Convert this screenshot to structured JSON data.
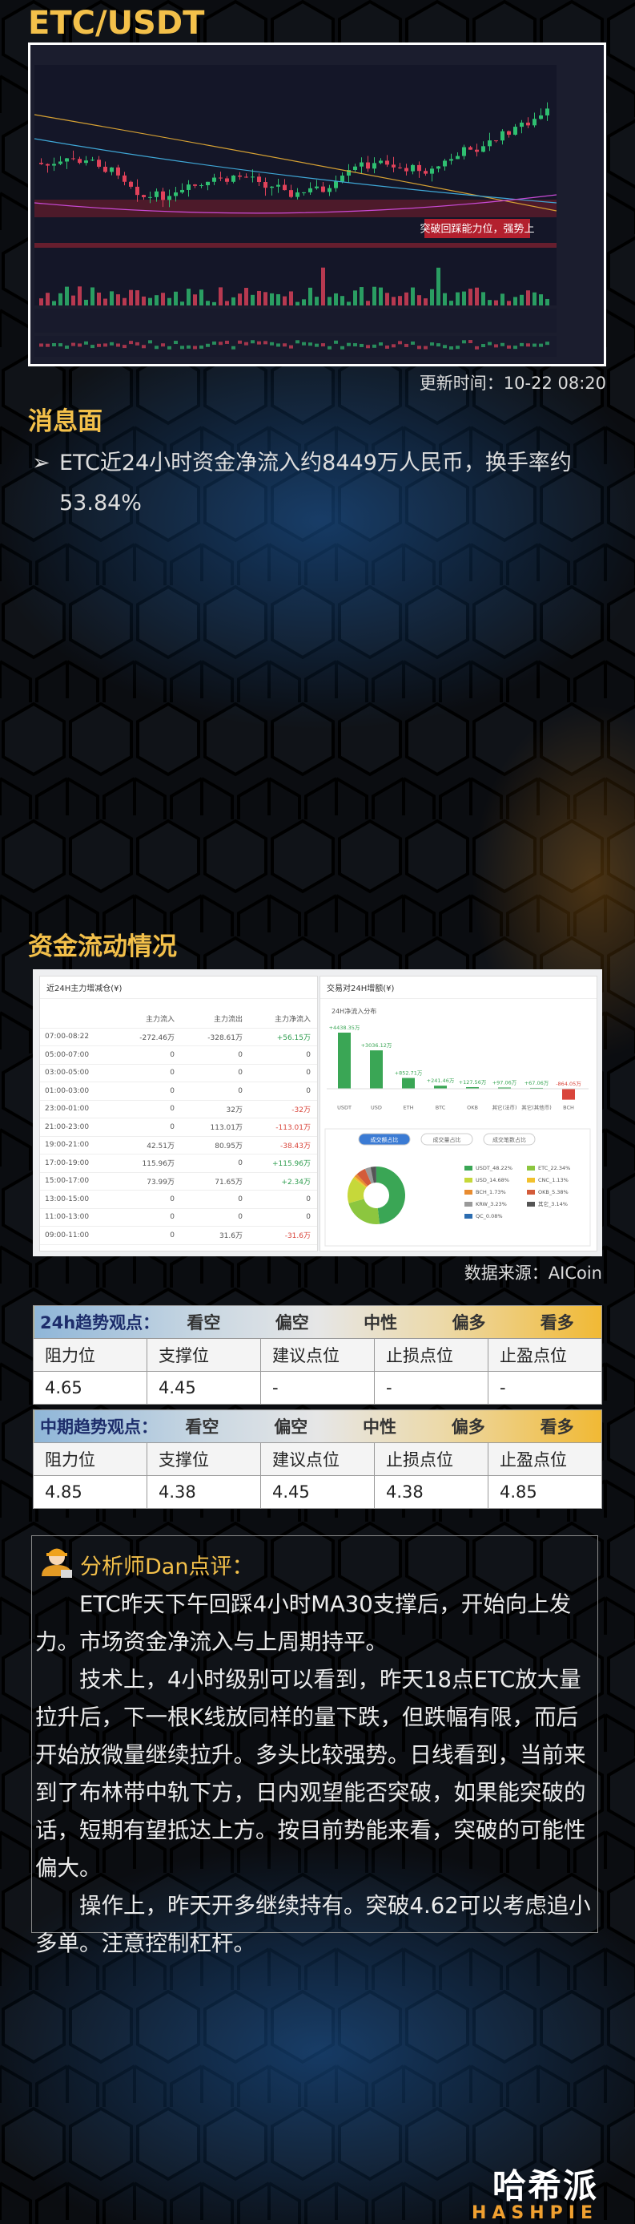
{
  "header": {
    "title": "ETC/USDT"
  },
  "price_chart": {
    "annotation": "突破回踩能力位，强势上"
  },
  "update_time": "更新时间：10-22 08:20",
  "news": {
    "title": "消息面",
    "items": [
      "ETC近24小时资金净流入约8449万人民币，换手率约53.84%"
    ]
  },
  "fund_flow": {
    "title": "资金流动情况",
    "source": "数据来源：AICoin",
    "left_panel": {
      "title": "近24H主力增减仓(¥)",
      "columns": [
        "主力流入",
        "主力流出",
        "主力净流入"
      ],
      "rows": [
        [
          "07:00-08:22",
          "-272.46万",
          "-328.61万",
          "+56.15万"
        ],
        [
          "05:00-07:00",
          "0",
          "0",
          "0"
        ],
        [
          "03:00-05:00",
          "0",
          "0",
          "0"
        ],
        [
          "01:00-03:00",
          "0",
          "0",
          "0"
        ],
        [
          "23:00-01:00",
          "0",
          "32万",
          "-32万"
        ],
        [
          "21:00-23:00",
          "0",
          "113.01万",
          "-113.01万"
        ],
        [
          "19:00-21:00",
          "42.51万",
          "80.95万",
          "-38.43万"
        ],
        [
          "17:00-19:00",
          "115.96万",
          "0",
          "+115.96万"
        ],
        [
          "15:00-17:00",
          "73.99万",
          "71.65万",
          "+2.34万"
        ],
        [
          "13:00-15:00",
          "0",
          "0",
          "0"
        ],
        [
          "11:00-13:00",
          "0",
          "0",
          "0"
        ],
        [
          "09:00-11:00",
          "0",
          "31.6万",
          "-31.6万"
        ]
      ]
    },
    "right_panel": {
      "title": "交易对24H增额(¥)",
      "subtitle": "24H净流入分布",
      "categories": [
        "USDT",
        "USD",
        "ETH",
        "BTC",
        "OKB",
        "其它(法币)",
        "其它(其他币)",
        "BCH"
      ],
      "values": [
        4438.35,
        3036.12,
        852.71,
        241.46,
        127.56,
        97.06,
        67.06,
        -864.05
      ],
      "value_labels": [
        "+4438.35万",
        "+3036.12万",
        "+852.71万",
        "+241.46万",
        "+127.56万",
        "+97.06万",
        "+67.06万",
        "-864.05万"
      ],
      "tabs": [
        "成交额占比",
        "成交量占比",
        "成交笔数占比"
      ],
      "pie": [
        {
          "label": "USDT_48.22%",
          "value": 48.22,
          "color": "#3aa655"
        },
        {
          "label": "ETC_22.34%",
          "value": 22.34,
          "color": "#8cc63f"
        },
        {
          "label": "USD_14.68%",
          "value": 14.68,
          "color": "#c6d83a"
        },
        {
          "label": "CNC_1.13%",
          "value": 1.13,
          "color": "#f2c12e"
        },
        {
          "label": "BCH_1.73%",
          "value": 1.73,
          "color": "#e88c30"
        },
        {
          "label": "OKB_5.38%",
          "value": 5.38,
          "color": "#d35b3a"
        },
        {
          "label": "KRW_3.23%",
          "value": 3.23,
          "color": "#9a9a9a"
        },
        {
          "label": "其它_3.14%",
          "value": 3.14,
          "color": "#555555"
        },
        {
          "label": "QC_0.08%",
          "value": 0.08,
          "color": "#2b6cb0"
        }
      ]
    }
  },
  "tables": [
    {
      "label": "24h趋势观点：",
      "scale": [
        "看空",
        "偏空",
        "中性",
        "偏多",
        "看多"
      ],
      "columns": [
        "阻力位",
        "支撑位",
        "建议点位",
        "止损点位",
        "止盈点位"
      ],
      "row": [
        "4.65",
        "4.45",
        "-",
        "-",
        "-"
      ]
    },
    {
      "label": "中期趋势观点：",
      "scale": [
        "看空",
        "偏空",
        "中性",
        "偏多",
        "看多"
      ],
      "columns": [
        "阻力位",
        "支撑位",
        "建议点位",
        "止损点位",
        "止盈点位"
      ],
      "row": [
        "4.85",
        "4.38",
        "4.45",
        "4.38",
        "4.85"
      ]
    }
  ],
  "analyst": {
    "title": "分析师Dan点评：",
    "paragraphs": [
      "ETC昨天下午回踩4小时MA30支撑后，开始向上发力。市场资金净流入与上周期持平。",
      "技术上，4小时级别可以看到，昨天18点ETC放大量拉升后，下一根K线放同样的量下跌，但跌幅有限，而后开始放微量继续拉升。多头比较强势。日线看到，当前来到了布林带中轨下方，日内观望能否突破，如果能突破的话，短期有望抵达上方。按目前势能来看，突破的可能性偏大。",
      "操作上，昨天开多继续持有。突破4.62可以考虑追小多单。注意控制杠杆。"
    ]
  },
  "brand": {
    "name": "哈希派",
    "sub": "HASHPIE"
  }
}
